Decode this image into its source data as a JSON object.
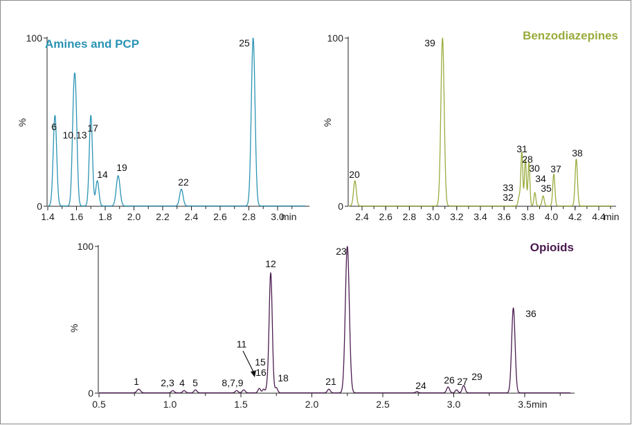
{
  "chart_data": [
    {
      "type": "line",
      "title": "Amines and PCP",
      "color": "#2a93b4",
      "xunit": "min",
      "xticks": [
        1.4,
        1.6,
        1.8,
        2.0,
        2.2,
        2.4,
        2.6,
        2.8,
        3.0
      ],
      "xlim": [
        1.35,
        3.15
      ],
      "ylim": [
        0,
        100
      ],
      "yticks": [
        0,
        100
      ],
      "ylabel": "%",
      "peaks": [
        {
          "label": "6",
          "rt": 1.45,
          "height": 54,
          "width": 0.012
        },
        {
          "label": "10,13",
          "rt": 1.58,
          "height": 50,
          "width": 0.011
        },
        {
          "label": "",
          "rt": 1.595,
          "height": 50,
          "width": 0.011
        },
        {
          "label": "17",
          "rt": 1.7,
          "height": 54,
          "width": 0.011
        },
        {
          "label": "14",
          "rt": 1.745,
          "height": 15,
          "width": 0.011
        },
        {
          "label": "19",
          "rt": 1.89,
          "height": 18,
          "width": 0.013
        },
        {
          "label": "22",
          "rt": 2.33,
          "height": 10,
          "width": 0.012
        },
        {
          "label": "25",
          "rt": 2.83,
          "height": 100,
          "width": 0.013
        }
      ]
    },
    {
      "type": "line",
      "title": "Benzodiazepines",
      "color": "#9aab3c",
      "xunit": "min",
      "xticks": [
        2.4,
        2.6,
        2.8,
        3.0,
        3.2,
        3.4,
        3.6,
        3.8,
        4.0,
        4.2,
        4.4
      ],
      "xlim": [
        2.25,
        4.5
      ],
      "ylim": [
        0,
        100
      ],
      "yticks": [
        0,
        100
      ],
      "ylabel": "%",
      "peaks": [
        {
          "label": "20",
          "rt": 2.34,
          "height": 15,
          "width": 0.012
        },
        {
          "label": "39",
          "rt": 3.08,
          "height": 100,
          "width": 0.014
        },
        {
          "label": "33",
          "rt": 3.725,
          "height": 4,
          "width": 0.008
        },
        {
          "label": "32",
          "rt": 3.735,
          "height": 3,
          "width": 0.008
        },
        {
          "label": "31",
          "rt": 3.75,
          "height": 32,
          "width": 0.008
        },
        {
          "label": "28",
          "rt": 3.78,
          "height": 28,
          "width": 0.008
        },
        {
          "label": "30",
          "rt": 3.81,
          "height": 26,
          "width": 0.008
        },
        {
          "label": "34",
          "rt": 3.86,
          "height": 8,
          "width": 0.008
        },
        {
          "label": "35",
          "rt": 3.93,
          "height": 6,
          "width": 0.009
        },
        {
          "label": "37",
          "rt": 4.02,
          "height": 19,
          "width": 0.009
        },
        {
          "label": "38",
          "rt": 4.21,
          "height": 28,
          "width": 0.01
        }
      ]
    },
    {
      "type": "line",
      "title": "Opioids",
      "color": "#4a1a4f",
      "xunit": "min",
      "xticks": [
        0.5,
        1.0,
        1.5,
        2.0,
        2.5,
        3.0,
        3.5
      ],
      "xlim": [
        0.5,
        3.8
      ],
      "ylim": [
        0,
        100
      ],
      "yticks": [
        0,
        100
      ],
      "ylabel": "%",
      "peaks": [
        {
          "label": "1",
          "rt": 0.78,
          "height": 2.5,
          "width": 0.012
        },
        {
          "label": "2,3",
          "rt": 1.02,
          "height": 1.5,
          "width": 0.01
        },
        {
          "label": "4",
          "rt": 1.1,
          "height": 1.5,
          "width": 0.01
        },
        {
          "label": "5",
          "rt": 1.18,
          "height": 2.0,
          "width": 0.01
        },
        {
          "label": "8,7,9",
          "rt": 1.47,
          "height": 1.5,
          "width": 0.01
        },
        {
          "label": "",
          "rt": 1.52,
          "height": 2.0,
          "width": 0.01
        },
        {
          "label": "11",
          "rt": 1.63,
          "height": 3.0,
          "width": 0.009
        },
        {
          "label": "15",
          "rt": 1.66,
          "height": 2.5,
          "width": 0.008
        },
        {
          "label": "16",
          "rt": 1.685,
          "height": 3.5,
          "width": 0.008
        },
        {
          "label": "12",
          "rt": 1.71,
          "height": 82,
          "width": 0.011
        },
        {
          "label": "18",
          "rt": 1.75,
          "height": 3.5,
          "width": 0.009
        },
        {
          "label": "21",
          "rt": 2.12,
          "height": 2.5,
          "width": 0.01
        },
        {
          "label": "23",
          "rt": 2.25,
          "height": 100,
          "width": 0.014
        },
        {
          "label": "24",
          "rt": 2.74,
          "height": 0.8,
          "width": 0.01
        },
        {
          "label": "26",
          "rt": 2.96,
          "height": 4.0,
          "width": 0.01
        },
        {
          "label": "27",
          "rt": 3.02,
          "height": 2.0,
          "width": 0.009
        },
        {
          "label": "29",
          "rt": 3.07,
          "height": 5.0,
          "width": 0.01
        },
        {
          "label": "36",
          "rt": 3.42,
          "height": 58,
          "width": 0.012
        }
      ]
    }
  ]
}
